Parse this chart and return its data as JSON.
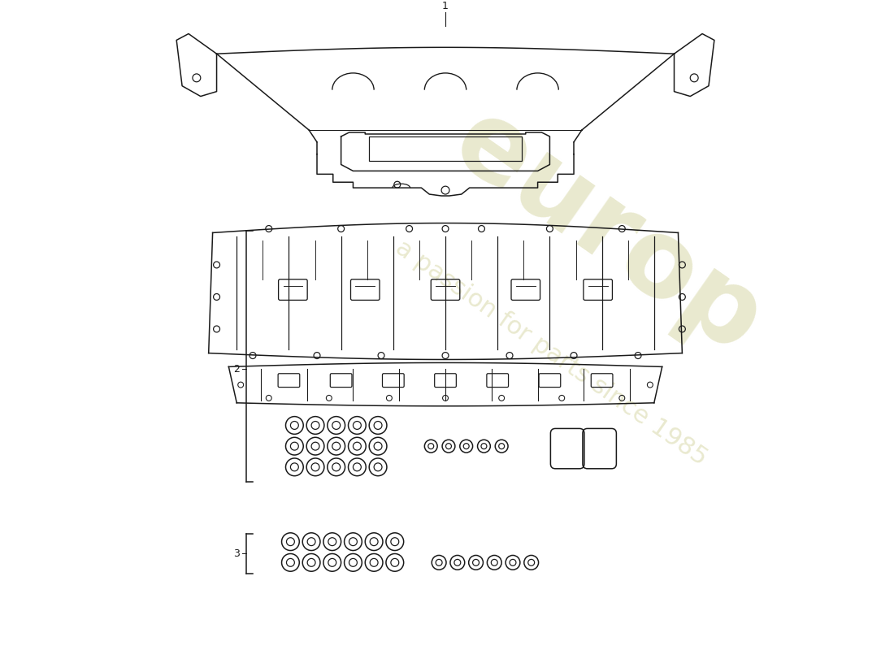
{
  "background_color": "#ffffff",
  "line_color": "#1a1a1a",
  "label1": "1",
  "label2": "2",
  "label3": "3",
  "fig_width": 11.0,
  "fig_height": 8.0
}
